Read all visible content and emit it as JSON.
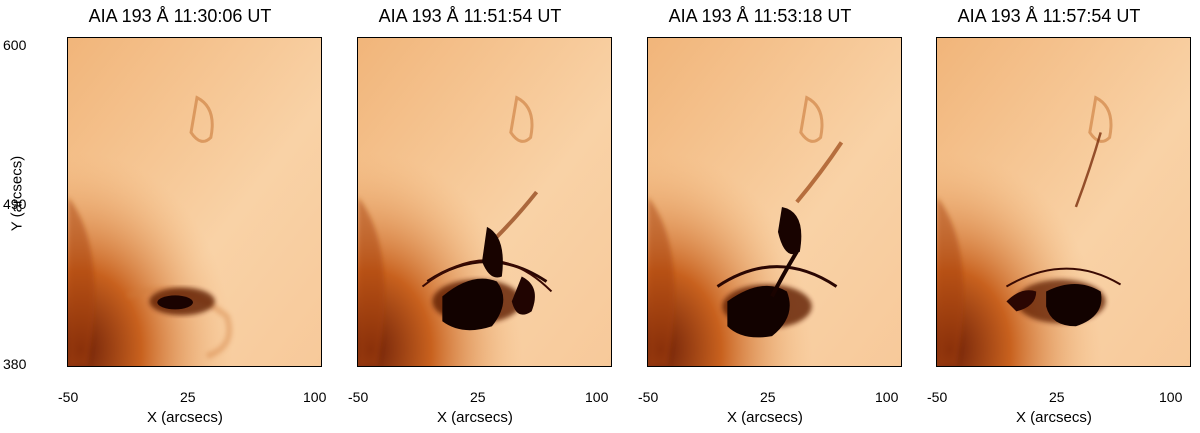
{
  "figure": {
    "ylabel": "Y (arcsecs)",
    "y_ticks": [
      "600",
      "490",
      "380"
    ],
    "panels": [
      {
        "title": "AIA 193 Å 11:30:06 UT",
        "x_ticks": [
          "-50",
          "25",
          "100"
        ],
        "xlabel": "X (arcsecs)"
      },
      {
        "title": "AIA 193 Å 11:51:54 UT",
        "x_ticks": [
          "-50",
          "25",
          "100"
        ],
        "xlabel": "X (arcsecs)"
      },
      {
        "title": "AIA 193 Å 11:53:18 UT",
        "x_ticks": [
          "-50",
          "25",
          "100"
        ],
        "xlabel": "X (arcsecs)"
      },
      {
        "title": "AIA 193 Å 11:57:54 UT",
        "x_ticks": [
          "-50",
          "25",
          "100"
        ],
        "xlabel": "X (arcsecs)"
      }
    ]
  },
  "colors": {
    "background": "#f7c999",
    "mid_tone": "#e58a3c",
    "dark_tone": "#8a2d0a",
    "core": "#150200"
  }
}
